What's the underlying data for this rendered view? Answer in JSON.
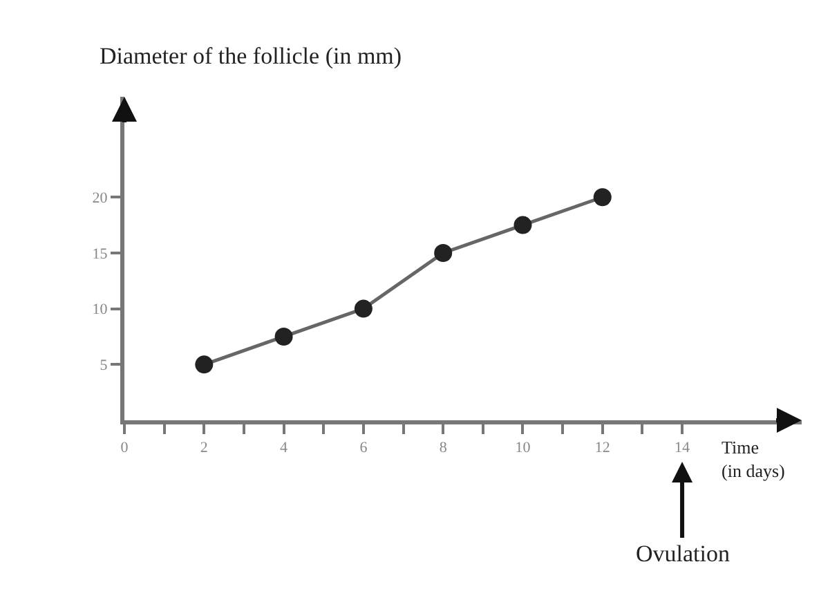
{
  "chart_data": {
    "type": "line",
    "ylabel": "Diameter of the follicle (in mm)",
    "xlabel": "Time\n(in days)",
    "x": [
      2,
      4,
      6,
      8,
      10,
      12
    ],
    "series": [
      {
        "color": "#222222",
        "values": [
          5,
          7.5,
          10,
          15,
          17.5,
          20
        ]
      }
    ],
    "xlim": [
      0,
      17
    ],
    "ylim": [
      0,
      29
    ],
    "xticks": [
      0,
      {
        "value": 1,
        "label": null
      },
      2,
      {
        "value": 3,
        "label": null
      },
      4,
      {
        "value": 5,
        "label": null
      },
      6,
      {
        "value": 7,
        "label": null
      },
      8,
      {
        "value": 9,
        "label": null
      },
      10,
      {
        "value": 11,
        "label": null
      },
      12,
      {
        "value": 13,
        "label": null
      },
      14
    ],
    "yticks": [
      5,
      10,
      15,
      20
    ],
    "annotations": [
      "Ovulation"
    ],
    "marker": "circle",
    "line_style": "solid"
  }
}
